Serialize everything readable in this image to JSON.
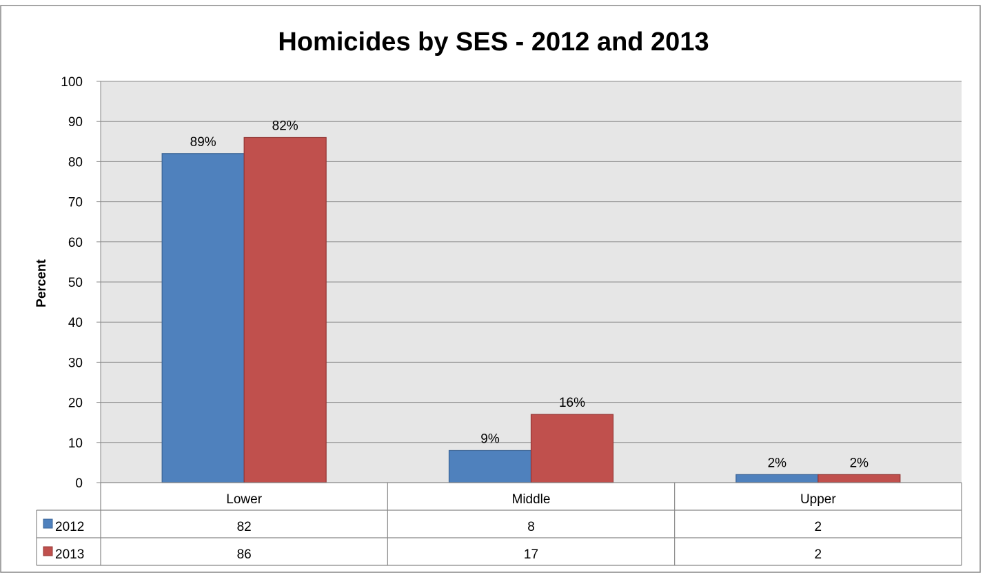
{
  "chart_data": {
    "type": "bar",
    "title": "Homicides by SES - 2012 and 2013",
    "ylabel": "Percent",
    "xlabel": "",
    "ylim": [
      0,
      100
    ],
    "yticks": [
      0,
      10,
      20,
      30,
      40,
      50,
      60,
      70,
      80,
      90,
      100
    ],
    "categories": [
      "Lower",
      "Middle",
      "Upper"
    ],
    "grid": true,
    "legend": "data-table",
    "series": [
      {
        "name": "2012",
        "color": "#4f81bd",
        "values": [
          82,
          8,
          2
        ],
        "labels": [
          "89%",
          "9%",
          "2%"
        ]
      },
      {
        "name": "2013",
        "color": "#c0504d",
        "values": [
          86,
          17,
          2
        ],
        "labels": [
          "82%",
          "16%",
          "2%"
        ]
      }
    ],
    "data_table": {
      "rows": [
        {
          "name": "2012",
          "values": [
            "82",
            "8",
            "2"
          ]
        },
        {
          "name": "2013",
          "values": [
            "86",
            "17",
            "2"
          ]
        }
      ]
    }
  }
}
